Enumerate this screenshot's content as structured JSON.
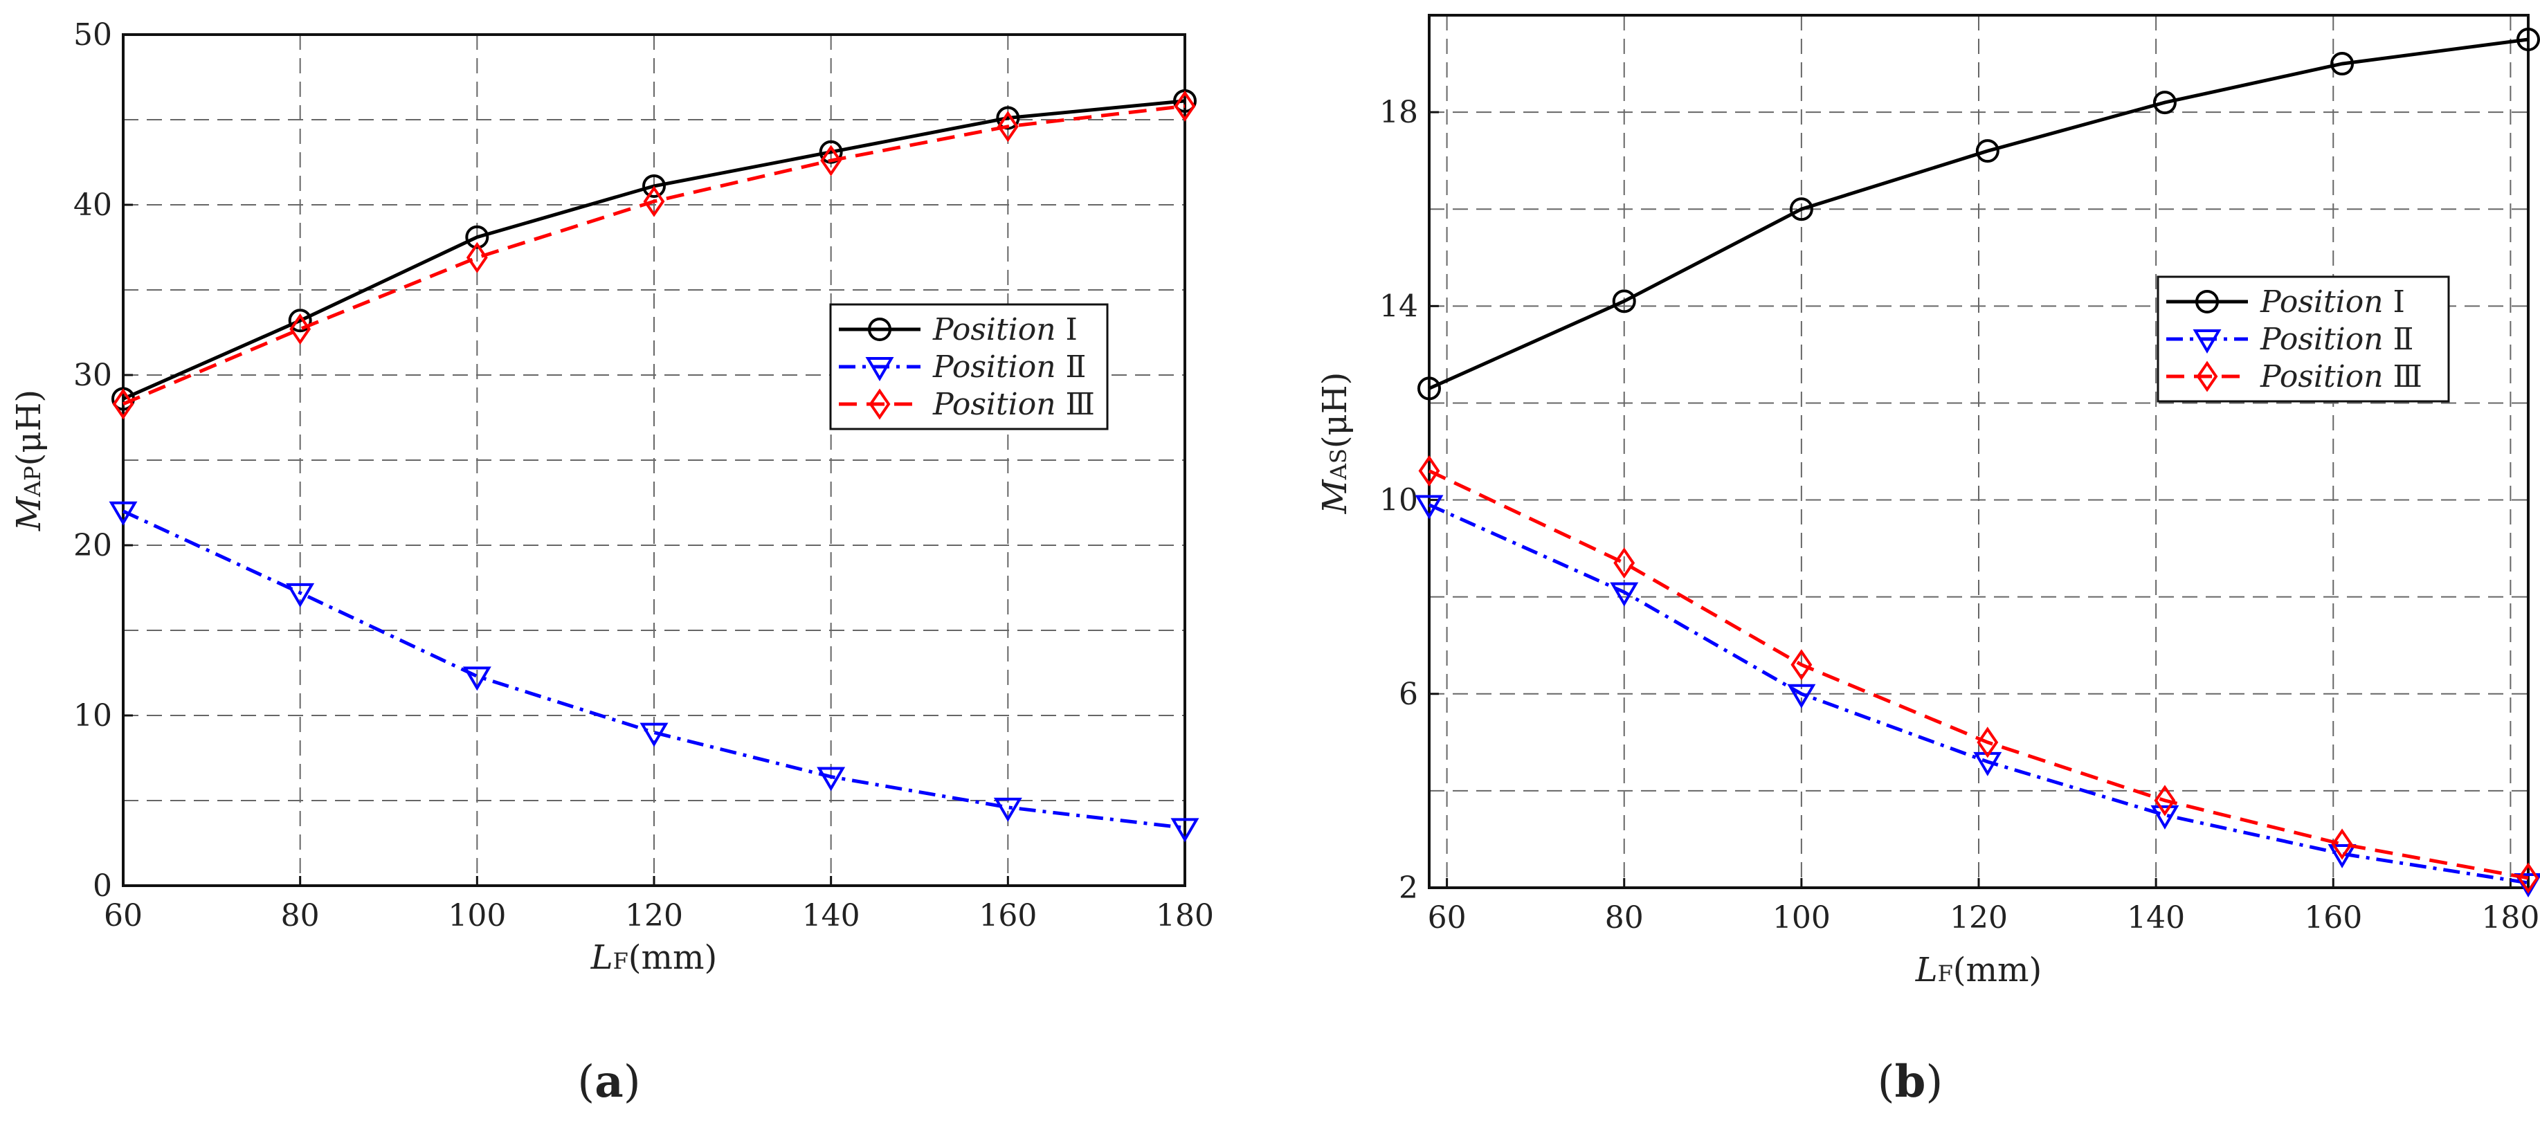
{
  "chart_data": [
    {
      "id": "a",
      "panel_label": "(a)",
      "type": "line",
      "xlabel_main": "L",
      "xlabel_sub": "F",
      "xlabel_unit": "(mm)",
      "ylabel_main": "M",
      "ylabel_sub": "AP",
      "ylabel_unit": "(μH)",
      "xlim": [
        60,
        180
      ],
      "ylim": [
        0,
        50
      ],
      "xticks": [
        60,
        80,
        100,
        120,
        140,
        160,
        180
      ],
      "yticks": [
        0,
        10,
        20,
        30,
        40,
        50
      ],
      "grid": true,
      "legend_position": "center-right",
      "series": [
        {
          "name": "Position Ⅰ",
          "name_italic": "Position",
          "name_roman": "Ⅰ",
          "color": "#000000",
          "dash": "solid",
          "marker": "circle",
          "x": [
            60,
            80,
            100,
            120,
            140,
            160,
            180
          ],
          "y": [
            28.6,
            33.2,
            38.1,
            41.1,
            43.1,
            45.1,
            46.1
          ]
        },
        {
          "name": "Position Ⅱ",
          "name_italic": "Position",
          "name_roman": "Ⅱ",
          "color": "#0000ff",
          "dash": "dashdot",
          "marker": "triangle-down",
          "x": [
            60,
            80,
            100,
            120,
            140,
            160,
            180
          ],
          "y": [
            22.0,
            17.2,
            12.3,
            9.0,
            6.4,
            4.6,
            3.4
          ]
        },
        {
          "name": "Position Ⅲ",
          "name_italic": "Position",
          "name_roman": "Ⅲ",
          "color": "#ff0000",
          "dash": "dashed",
          "marker": "diamond",
          "x": [
            60,
            80,
            100,
            120,
            140,
            160,
            180
          ],
          "y": [
            28.3,
            32.7,
            36.9,
            40.2,
            42.6,
            44.6,
            45.8
          ]
        }
      ]
    },
    {
      "id": "b",
      "panel_label": "(b)",
      "type": "line",
      "xlabel_main": "L",
      "xlabel_sub": "F",
      "xlabel_unit": "(mm)",
      "ylabel_main": "M",
      "ylabel_sub": "AS",
      "ylabel_unit": "(μH)",
      "xlim": [
        58,
        182
      ],
      "ylim": [
        2,
        20
      ],
      "xticks": [
        60,
        80,
        100,
        120,
        140,
        160,
        180
      ],
      "yticks": [
        2,
        6,
        10,
        14,
        18
      ],
      "grid": true,
      "legend_position": "center-right",
      "series": [
        {
          "name": "Position Ⅰ",
          "name_italic": "Position",
          "name_roman": "Ⅰ",
          "color": "#000000",
          "dash": "solid",
          "marker": "circle",
          "x": [
            58,
            80,
            100,
            121,
            141,
            161,
            182
          ],
          "y": [
            12.3,
            14.1,
            16.0,
            17.2,
            18.2,
            19.0,
            19.5
          ]
        },
        {
          "name": "Position Ⅱ",
          "name_italic": "Position",
          "name_roman": "Ⅱ",
          "color": "#0000ff",
          "dash": "dashdot",
          "marker": "triangle-down",
          "x": [
            58,
            80,
            100,
            121,
            141,
            161,
            182
          ],
          "y": [
            9.9,
            8.1,
            6.0,
            4.6,
            3.5,
            2.7,
            2.1
          ]
        },
        {
          "name": "Position Ⅲ",
          "name_italic": "Position",
          "name_roman": "Ⅲ",
          "color": "#ff0000",
          "dash": "dashed",
          "marker": "diamond",
          "x": [
            58,
            80,
            100,
            121,
            141,
            161,
            182
          ],
          "y": [
            10.6,
            8.7,
            6.6,
            5.0,
            3.8,
            2.9,
            2.2
          ]
        }
      ]
    }
  ]
}
